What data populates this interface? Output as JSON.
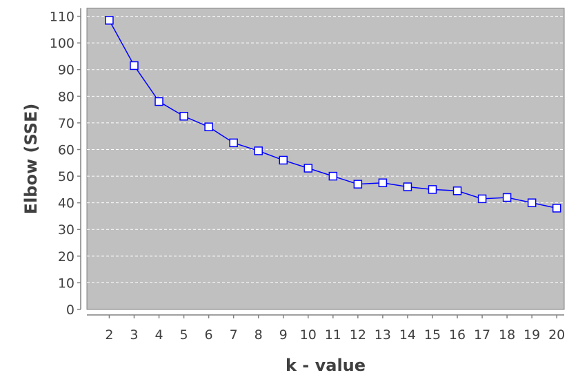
{
  "chart_data": {
    "type": "line",
    "title": "",
    "xlabel": "k - value",
    "ylabel": "Elbow (SSE)",
    "x": [
      2,
      3,
      4,
      5,
      6,
      7,
      8,
      9,
      10,
      11,
      12,
      13,
      14,
      15,
      16,
      17,
      18,
      19,
      20
    ],
    "series": [
      {
        "values": [
          108.5,
          91.5,
          78,
          72.5,
          68.5,
          62.5,
          59.5,
          56,
          53,
          50,
          47,
          47.5,
          46,
          45,
          44.5,
          41.5,
          42,
          40,
          38
        ]
      }
    ],
    "y_ticks": [
      0,
      10,
      20,
      30,
      40,
      50,
      60,
      70,
      80,
      90,
      100,
      110
    ],
    "ylim": [
      0,
      113
    ],
    "xlim": [
      1.1,
      20.3
    ],
    "grid": true,
    "legend": "none",
    "colors": {
      "plot_background": "#c0c0c0",
      "grid": "#ffffff",
      "line": "#0000ff",
      "marker_fill": "#ffffff",
      "axis": "#808080",
      "text": "#404040"
    }
  }
}
